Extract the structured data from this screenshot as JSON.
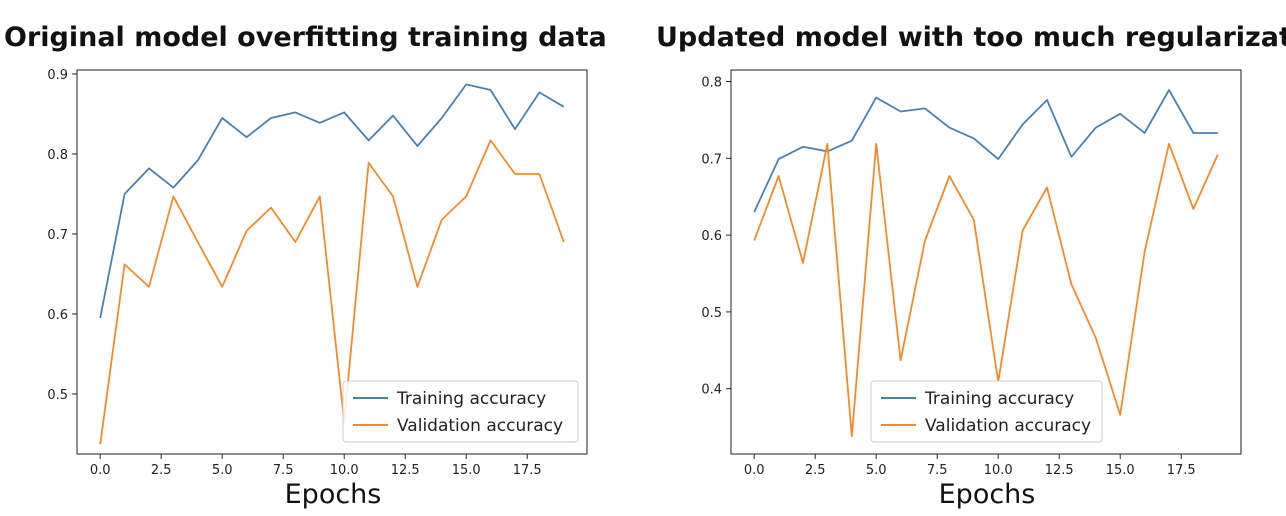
{
  "colors": {
    "training": "#4c7fae",
    "validation": "#f08c2f"
  },
  "chart_data": [
    {
      "type": "line",
      "title": "Original model overfitting training data",
      "xlabel": "Epochs",
      "ylabel": "",
      "x": [
        0,
        1,
        2,
        3,
        4,
        5,
        6,
        7,
        8,
        9,
        10,
        11,
        12,
        13,
        14,
        15,
        16,
        17,
        18,
        19
      ],
      "xlim": [
        -0.95,
        19.95
      ],
      "ylim": [
        0.425,
        0.905
      ],
      "xticks": [
        0.0,
        2.5,
        5.0,
        7.5,
        10.0,
        12.5,
        15.0,
        17.5
      ],
      "xtick_labels": [
        "0.0",
        "2.5",
        "5.0",
        "7.5",
        "10.0",
        "12.5",
        "15.0",
        "17.5"
      ],
      "yticks": [
        0.5,
        0.6,
        0.7,
        0.8,
        0.9
      ],
      "ytick_labels": [
        "0.5",
        "0.6",
        "0.7",
        "0.8",
        "0.9"
      ],
      "legend_position": "bottom-right",
      "series": [
        {
          "name": "Training accuracy",
          "values": [
            0.595,
            0.75,
            0.782,
            0.758,
            0.792,
            0.845,
            0.821,
            0.845,
            0.852,
            0.839,
            0.852,
            0.817,
            0.848,
            0.81,
            0.845,
            0.887,
            0.88,
            0.831,
            0.877,
            0.859
          ]
        },
        {
          "name": "Validation accuracy",
          "values": [
            0.437,
            0.662,
            0.634,
            0.747,
            0.69,
            0.634,
            0.704,
            0.733,
            0.69,
            0.747,
            0.465,
            0.789,
            0.747,
            0.634,
            0.718,
            0.747,
            0.817,
            0.775,
            0.775,
            0.69
          ]
        }
      ]
    },
    {
      "type": "line",
      "title": "Updated model with too much regularization",
      "xlabel": "Epochs",
      "ylabel": "",
      "x": [
        0,
        1,
        2,
        3,
        4,
        5,
        6,
        7,
        8,
        9,
        10,
        11,
        12,
        13,
        14,
        15,
        16,
        17,
        18,
        19
      ],
      "xlim": [
        -0.95,
        19.95
      ],
      "ylim": [
        0.315,
        0.815
      ],
      "xticks": [
        0.0,
        2.5,
        5.0,
        7.5,
        10.0,
        12.5,
        15.0,
        17.5
      ],
      "xtick_labels": [
        "0.0",
        "2.5",
        "5.0",
        "7.5",
        "10.0",
        "12.5",
        "15.0",
        "17.5"
      ],
      "yticks": [
        0.4,
        0.5,
        0.6,
        0.7,
        0.8
      ],
      "ytick_labels": [
        "0.4",
        "0.5",
        "0.6",
        "0.7",
        "0.8"
      ],
      "legend_position": "bottom-center",
      "series": [
        {
          "name": "Training accuracy",
          "values": [
            0.63,
            0.699,
            0.715,
            0.709,
            0.723,
            0.779,
            0.761,
            0.765,
            0.74,
            0.726,
            0.699,
            0.744,
            0.776,
            0.702,
            0.74,
            0.758,
            0.733,
            0.789,
            0.733,
            0.733
          ]
        },
        {
          "name": "Validation accuracy",
          "values": [
            0.593,
            0.677,
            0.564,
            0.719,
            0.338,
            0.719,
            0.437,
            0.593,
            0.677,
            0.62,
            0.409,
            0.606,
            0.662,
            0.536,
            0.466,
            0.366,
            0.578,
            0.719,
            0.634,
            0.705
          ]
        }
      ]
    }
  ]
}
